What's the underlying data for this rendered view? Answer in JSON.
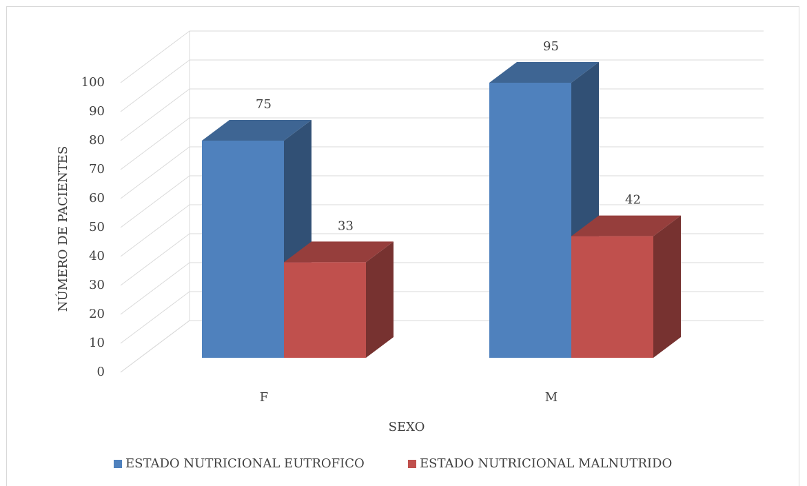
{
  "chart_data": {
    "type": "bar3d",
    "categories": [
      "F",
      "M"
    ],
    "series": [
      {
        "name": "ESTADO NUTRICIONAL EUTROFICO",
        "color": "#4f81bd",
        "values": [
          75,
          95
        ]
      },
      {
        "name": "ESTADO NUTRICIONAL MALNUTRIDO",
        "color": "#c0504d",
        "values": [
          33,
          42
        ]
      }
    ],
    "y_label": "NÚMERO DE PACIENTES",
    "x_label": "SEXO",
    "ylim": [
      0,
      100
    ],
    "yticks": [
      0,
      10,
      20,
      30,
      40,
      50,
      60,
      70,
      80,
      90,
      100
    ],
    "grid": true,
    "legend": "bottom"
  }
}
